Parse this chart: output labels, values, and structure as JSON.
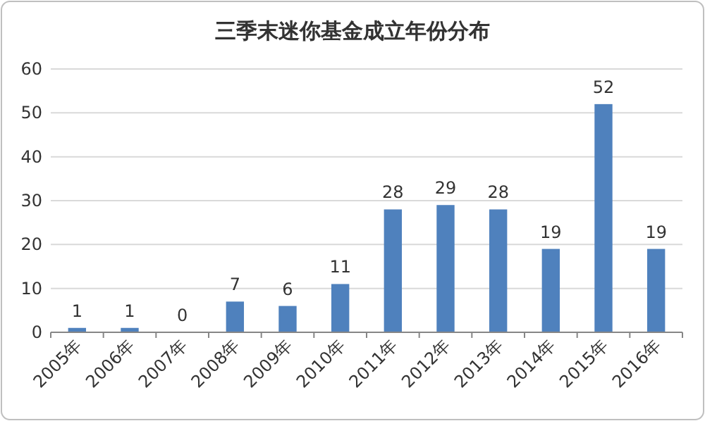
{
  "chart_data": {
    "type": "bar",
    "title": "三季末迷你基金成立年份分布",
    "categories": [
      "2005年",
      "2006年",
      "2007年",
      "2008年",
      "2009年",
      "2010年",
      "2011年",
      "2012年",
      "2013年",
      "2014年",
      "2015年",
      "2016年"
    ],
    "values": [
      1,
      1,
      0,
      7,
      6,
      11,
      28,
      29,
      28,
      19,
      52,
      19
    ],
    "color": "#4f81bd",
    "ylim": [
      0,
      60
    ],
    "yticks": [
      0,
      10,
      20,
      30,
      40,
      50,
      60
    ],
    "grid": "y",
    "data_labels": true
  }
}
